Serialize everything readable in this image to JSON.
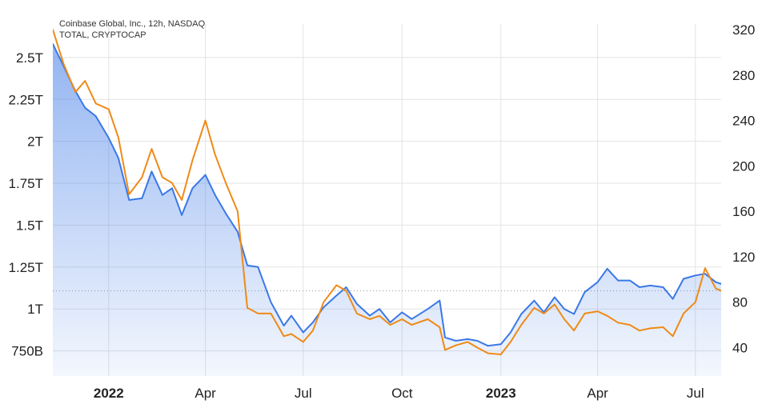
{
  "chart_data": {
    "type": "line",
    "legend": [
      "Coinbase Global, Inc., 12h, NASDAQ",
      "TOTAL, CRYPTOCAP"
    ],
    "legend_placement": "top-left",
    "grid": true,
    "x_tick_labels": [
      "2022",
      "Apr",
      "Jul",
      "Oct",
      "2023",
      "Apr",
      "Jul"
    ],
    "x_tick_dates": [
      "2022-01-01",
      "2022-04-01",
      "2022-07-01",
      "2022-10-01",
      "2023-01-01",
      "2023-04-01",
      "2023-07-01"
    ],
    "x_range": [
      "2021-11-10",
      "2023-07-25"
    ],
    "left_axis": {
      "ticks": [
        750,
        1000,
        1250,
        1500,
        1750,
        2000,
        2250,
        2500
      ],
      "tick_labels": [
        "750B",
        "1T",
        "1.25T",
        "1.5T",
        "1.75T",
        "2T",
        "2.25T",
        "2.5T"
      ],
      "range": [
        600,
        2700
      ]
    },
    "right_axis": {
      "ticks": [
        40,
        80,
        120,
        160,
        200,
        240,
        280,
        320
      ],
      "tick_labels": [
        "40",
        "80",
        "120",
        "160",
        "200",
        "240",
        "280",
        "320"
      ],
      "range": [
        15,
        325
      ]
    },
    "reference_line_right_value": 90,
    "series": [
      {
        "name": "TOTAL, CRYPTOCAP",
        "axis": "left",
        "color": "#3b78e7",
        "fill": true,
        "points": [
          [
            "2021-11-10",
            2580
          ],
          [
            "2021-11-20",
            2450
          ],
          [
            "2021-12-01",
            2300
          ],
          [
            "2021-12-10",
            2200
          ],
          [
            "2021-12-20",
            2150
          ],
          [
            "2022-01-01",
            2020
          ],
          [
            "2022-01-10",
            1900
          ],
          [
            "2022-01-20",
            1650
          ],
          [
            "2022-02-01",
            1660
          ],
          [
            "2022-02-10",
            1820
          ],
          [
            "2022-02-20",
            1680
          ],
          [
            "2022-03-01",
            1720
          ],
          [
            "2022-03-10",
            1560
          ],
          [
            "2022-03-20",
            1720
          ],
          [
            "2022-04-01",
            1800
          ],
          [
            "2022-04-10",
            1680
          ],
          [
            "2022-04-20",
            1570
          ],
          [
            "2022-05-01",
            1460
          ],
          [
            "2022-05-10",
            1260
          ],
          [
            "2022-05-20",
            1250
          ],
          [
            "2022-06-01",
            1040
          ],
          [
            "2022-06-13",
            900
          ],
          [
            "2022-06-20",
            960
          ],
          [
            "2022-07-01",
            860
          ],
          [
            "2022-07-10",
            920
          ],
          [
            "2022-07-20",
            1010
          ],
          [
            "2022-08-01",
            1080
          ],
          [
            "2022-08-10",
            1130
          ],
          [
            "2022-08-20",
            1030
          ],
          [
            "2022-09-01",
            960
          ],
          [
            "2022-09-10",
            1000
          ],
          [
            "2022-09-20",
            920
          ],
          [
            "2022-10-01",
            980
          ],
          [
            "2022-10-10",
            940
          ],
          [
            "2022-10-25",
            1000
          ],
          [
            "2022-11-05",
            1050
          ],
          [
            "2022-11-10",
            830
          ],
          [
            "2022-11-20",
            810
          ],
          [
            "2022-12-01",
            820
          ],
          [
            "2022-12-10",
            810
          ],
          [
            "2022-12-20",
            780
          ],
          [
            "2023-01-01",
            790
          ],
          [
            "2023-01-10",
            860
          ],
          [
            "2023-01-20",
            970
          ],
          [
            "2023-02-01",
            1050
          ],
          [
            "2023-02-10",
            980
          ],
          [
            "2023-02-20",
            1070
          ],
          [
            "2023-03-01",
            1000
          ],
          [
            "2023-03-10",
            970
          ],
          [
            "2023-03-20",
            1100
          ],
          [
            "2023-04-01",
            1160
          ],
          [
            "2023-04-10",
            1240
          ],
          [
            "2023-04-20",
            1170
          ],
          [
            "2023-05-01",
            1170
          ],
          [
            "2023-05-10",
            1130
          ],
          [
            "2023-05-20",
            1140
          ],
          [
            "2023-06-01",
            1130
          ],
          [
            "2023-06-10",
            1060
          ],
          [
            "2023-06-20",
            1180
          ],
          [
            "2023-07-01",
            1200
          ],
          [
            "2023-07-10",
            1210
          ],
          [
            "2023-07-20",
            1160
          ],
          [
            "2023-07-25",
            1150
          ]
        ]
      },
      {
        "name": "Coinbase Global, Inc., 12h, NASDAQ",
        "axis": "right",
        "color": "#ef8a17",
        "fill": false,
        "points": [
          [
            "2021-11-10",
            320
          ],
          [
            "2021-11-20",
            290
          ],
          [
            "2021-12-01",
            265
          ],
          [
            "2021-12-10",
            275
          ],
          [
            "2021-12-20",
            255
          ],
          [
            "2022-01-01",
            250
          ],
          [
            "2022-01-10",
            225
          ],
          [
            "2022-01-20",
            175
          ],
          [
            "2022-02-01",
            190
          ],
          [
            "2022-02-10",
            215
          ],
          [
            "2022-02-20",
            190
          ],
          [
            "2022-03-01",
            185
          ],
          [
            "2022-03-10",
            170
          ],
          [
            "2022-03-20",
            205
          ],
          [
            "2022-04-01",
            240
          ],
          [
            "2022-04-10",
            210
          ],
          [
            "2022-04-20",
            185
          ],
          [
            "2022-05-01",
            160
          ],
          [
            "2022-05-10",
            75
          ],
          [
            "2022-05-20",
            70
          ],
          [
            "2022-06-01",
            70
          ],
          [
            "2022-06-13",
            50
          ],
          [
            "2022-06-20",
            52
          ],
          [
            "2022-07-01",
            45
          ],
          [
            "2022-07-10",
            55
          ],
          [
            "2022-07-20",
            80
          ],
          [
            "2022-08-01",
            95
          ],
          [
            "2022-08-10",
            90
          ],
          [
            "2022-08-20",
            70
          ],
          [
            "2022-09-01",
            65
          ],
          [
            "2022-09-10",
            68
          ],
          [
            "2022-09-20",
            60
          ],
          [
            "2022-10-01",
            65
          ],
          [
            "2022-10-10",
            60
          ],
          [
            "2022-10-25",
            65
          ],
          [
            "2022-11-05",
            58
          ],
          [
            "2022-11-10",
            38
          ],
          [
            "2022-11-20",
            42
          ],
          [
            "2022-12-01",
            45
          ],
          [
            "2022-12-10",
            40
          ],
          [
            "2022-12-20",
            35
          ],
          [
            "2023-01-01",
            34
          ],
          [
            "2023-01-10",
            45
          ],
          [
            "2023-01-20",
            60
          ],
          [
            "2023-02-01",
            75
          ],
          [
            "2023-02-10",
            70
          ],
          [
            "2023-02-20",
            78
          ],
          [
            "2023-03-01",
            65
          ],
          [
            "2023-03-10",
            55
          ],
          [
            "2023-03-20",
            70
          ],
          [
            "2023-04-01",
            72
          ],
          [
            "2023-04-10",
            68
          ],
          [
            "2023-04-20",
            62
          ],
          [
            "2023-05-01",
            60
          ],
          [
            "2023-05-10",
            55
          ],
          [
            "2023-05-20",
            57
          ],
          [
            "2023-06-01",
            58
          ],
          [
            "2023-06-10",
            50
          ],
          [
            "2023-06-20",
            70
          ],
          [
            "2023-07-01",
            80
          ],
          [
            "2023-07-10",
            110
          ],
          [
            "2023-07-20",
            92
          ],
          [
            "2023-07-25",
            90
          ]
        ]
      }
    ]
  }
}
